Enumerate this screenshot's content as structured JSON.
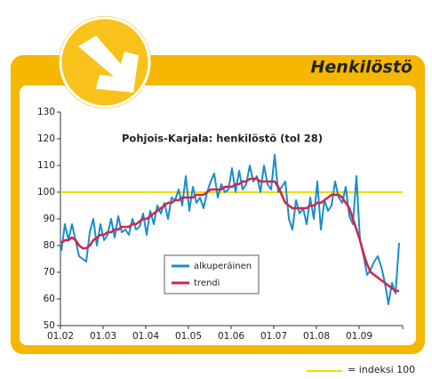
{
  "header": {
    "title": "Henkilöstö"
  },
  "footnote": "= indeksi 100",
  "chart_data": {
    "type": "line",
    "title": "Pohjois-Karjala: henkilöstö (tol 28)",
    "categories": [
      "01.02",
      null,
      null,
      null,
      null,
      null,
      null,
      null,
      null,
      null,
      null,
      null,
      "01.03",
      null,
      null,
      null,
      null,
      null,
      null,
      null,
      null,
      null,
      null,
      null,
      "01.04",
      null,
      null,
      null,
      null,
      null,
      null,
      null,
      null,
      null,
      null,
      null,
      "01.05",
      null,
      null,
      null,
      null,
      null,
      null,
      null,
      null,
      null,
      null,
      null,
      "01.06",
      null,
      null,
      null,
      null,
      null,
      null,
      null,
      null,
      null,
      null,
      null,
      "01.07",
      null,
      null,
      null,
      null,
      null,
      null,
      null,
      null,
      null,
      null,
      null,
      "01.08",
      null,
      null,
      null,
      null,
      null,
      null,
      null,
      null,
      null,
      null,
      null,
      "01.09",
      null,
      null,
      null,
      null,
      null,
      null,
      null,
      null,
      null,
      null,
      null
    ],
    "series": [
      {
        "name": "alkuperäinen",
        "color": "#1a8ccc",
        "values": [
          78,
          88,
          82,
          88,
          82,
          76,
          75,
          74,
          85,
          90,
          80,
          88,
          82,
          84,
          90,
          83,
          91,
          85,
          86,
          84,
          90,
          86,
          87,
          92,
          84,
          93,
          88,
          95,
          92,
          96,
          90,
          98,
          97,
          101,
          95,
          106,
          93,
          102,
          96,
          98,
          94,
          100,
          104,
          107,
          98,
          103,
          100,
          101,
          109,
          100,
          108,
          101,
          103,
          110,
          104,
          106,
          100,
          110,
          103,
          101,
          114,
          100,
          102,
          104,
          90,
          86,
          97,
          92,
          94,
          88,
          98,
          90,
          104,
          86,
          97,
          93,
          95,
          104,
          98,
          96,
          102,
          91,
          88,
          106,
          82,
          76,
          69,
          71,
          74,
          76,
          72,
          66,
          58,
          66,
          62,
          81
        ]
      },
      {
        "name": "trendi",
        "color": "#d0264a",
        "values": [
          81,
          82,
          82,
          83,
          82,
          80,
          79,
          79,
          80,
          82,
          83,
          84,
          84,
          85,
          85,
          86,
          86,
          87,
          87,
          87,
          88,
          88,
          89,
          90,
          90,
          91,
          92,
          93,
          94,
          95,
          96,
          96,
          97,
          97,
          98,
          98,
          98,
          98,
          99,
          99,
          99,
          100,
          101,
          101,
          101,
          101,
          102,
          102,
          102,
          103,
          103,
          104,
          104,
          105,
          105,
          105,
          104,
          104,
          104,
          104,
          104,
          102,
          99,
          96,
          95,
          94,
          94,
          94,
          94,
          94,
          95,
          95,
          96,
          96,
          97,
          98,
          99,
          99,
          99,
          98,
          96,
          94,
          90,
          86,
          82,
          77,
          73,
          70,
          69,
          68,
          67,
          66,
          65,
          64,
          63,
          63
        ]
      }
    ],
    "reference_line": 100,
    "reference_color": "#e8e000",
    "ylim": [
      50,
      130
    ],
    "yticks": [
      50,
      60,
      70,
      80,
      90,
      100,
      110,
      120,
      130
    ]
  }
}
